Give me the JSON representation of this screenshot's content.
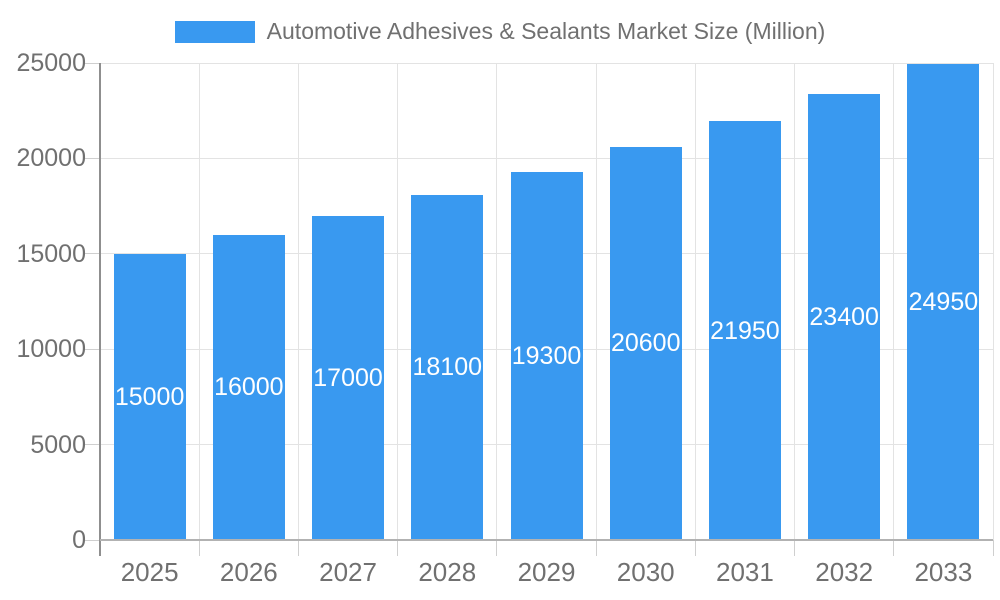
{
  "legend": {
    "label": "Automotive Adhesives & Sealants Market Size (Million)",
    "swatch_color": "#3999F0"
  },
  "chart_data": {
    "type": "bar",
    "title": "Automotive Adhesives & Sealants Market Size (Million)",
    "categories": [
      "2025",
      "2026",
      "2027",
      "2028",
      "2029",
      "2030",
      "2031",
      "2032",
      "2033"
    ],
    "values": [
      15000,
      16000,
      17000,
      18100,
      19300,
      20600,
      21950,
      23400,
      24950
    ],
    "value_labels": [
      "15000",
      "16000",
      "17000",
      "18100",
      "19300",
      "20600",
      "21950",
      "23400",
      "24950"
    ],
    "xlabel": "",
    "ylabel": "",
    "ylim": [
      0,
      25000
    ],
    "yticks": [
      0,
      5000,
      10000,
      15000,
      20000,
      25000
    ],
    "ytick_labels": [
      "0",
      "5000",
      "10000",
      "15000",
      "20000",
      "25000"
    ],
    "grid": true,
    "legend_position": "top",
    "colors": {
      "bar": "#3999F0",
      "value_label": "#ffffff",
      "axis_text": "#707070",
      "gridline": "#e3e3e3",
      "tick": "#cfcfcf",
      "y_axis_line": "#8f8f8f",
      "x_axis_line": "#b2b2b2"
    }
  }
}
